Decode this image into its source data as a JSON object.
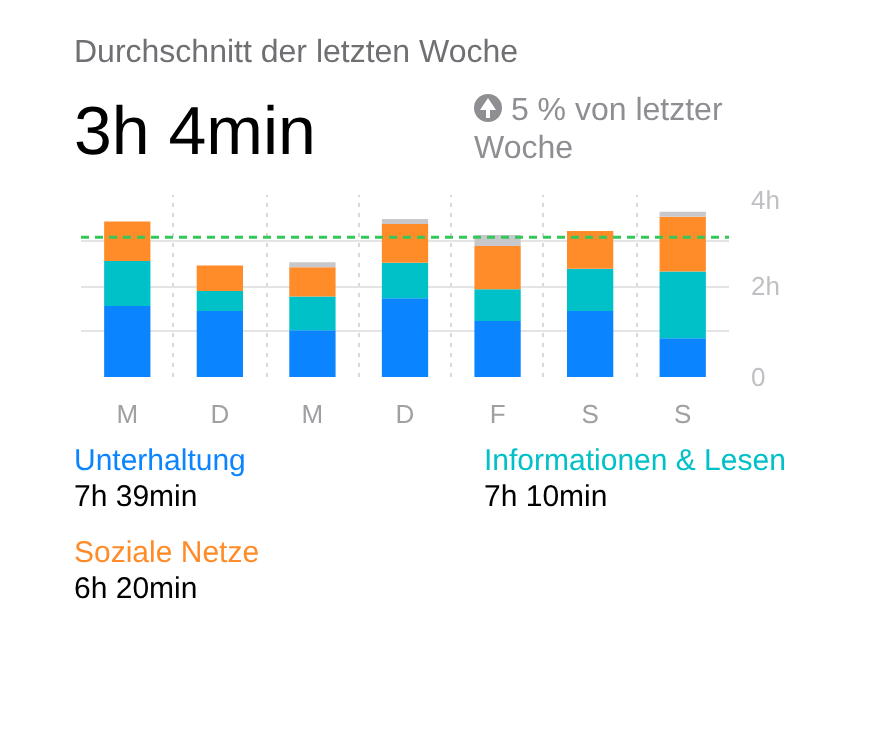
{
  "chart_data": {
    "type": "bar",
    "stacked": true,
    "title": "Durchschnitt der letzten Woche",
    "subtitle": "3h 4min",
    "annotations": [
      "5 % von letzter Woche",
      "7h 39min",
      "7h 10min",
      "6h 20min"
    ],
    "categories": [
      "M",
      "D",
      "M",
      "D",
      "F",
      "S",
      "S"
    ],
    "series": [
      {
        "name": "Unterhaltung",
        "color": "#0a84ff",
        "values": [
          1.56,
          1.45,
          1.03,
          1.73,
          1.23,
          1.45,
          0.85
        ]
      },
      {
        "name": "Informationen & Lesen",
        "color": "#00c0c8",
        "values": [
          0.99,
          0.44,
          0.74,
          0.78,
          0.7,
          0.93,
          1.47
        ]
      },
      {
        "name": "Soziale Netze",
        "color": "#ff8c28",
        "values": [
          0.87,
          0.56,
          0.64,
          0.85,
          0.95,
          0.83,
          1.2
        ]
      },
      {
        "color": "#c8c8cc",
        "values": [
          null,
          null,
          0.11,
          0.11,
          0.24,
          null,
          0.11
        ]
      }
    ],
    "ylim": [
      0,
      4
    ],
    "yticks": [
      0,
      {
        "value": 1,
        "label": null
      },
      {
        "value": 2,
        "label": "2h"
      },
      {
        "value": 3,
        "label": null
      },
      {
        "value": 4,
        "label": "4h"
      }
    ],
    "grid": true,
    "legend": "bottom",
    "ref_lines": [
      {
        "axis": "y",
        "value": 3.07,
        "label": null,
        "color": "#34c759",
        "line_style": "dashed"
      }
    ]
  }
}
